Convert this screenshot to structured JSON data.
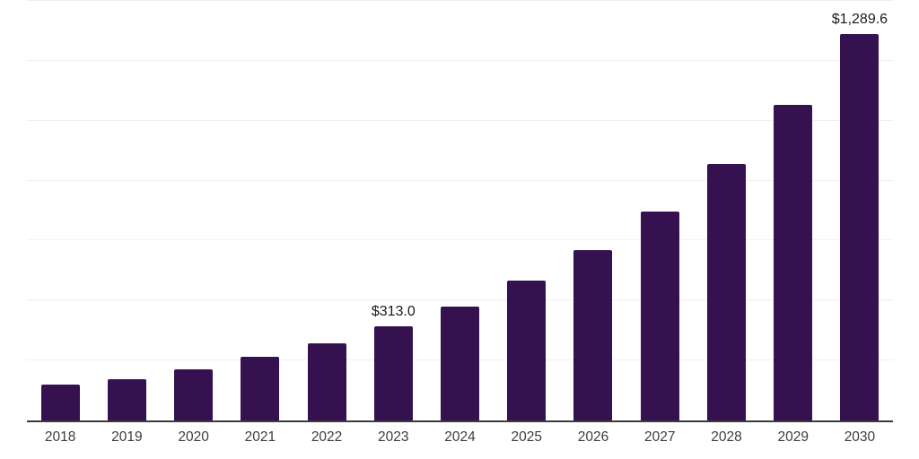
{
  "chart_data": {
    "type": "bar",
    "title": "",
    "xlabel": "",
    "ylabel": "",
    "categories": [
      "2018",
      "2019",
      "2020",
      "2021",
      "2022",
      "2023",
      "2024",
      "2025",
      "2026",
      "2027",
      "2028",
      "2029",
      "2030"
    ],
    "values": [
      120,
      139,
      172,
      214,
      256,
      313.0,
      380,
      467,
      569,
      698,
      856,
      1053,
      1289.6
    ],
    "data_labels": [
      "",
      "",
      "",
      "",
      "",
      "$313.0",
      "",
      "",
      "",
      "",
      "",
      "",
      "$1,289.6"
    ],
    "ylim": [
      0,
      1400
    ],
    "gridline_step": 200,
    "grid": true,
    "legend": false,
    "bar_color": "#351150",
    "gridline_color": "#f0f0f1",
    "axis_line_color": "#3a3a3a",
    "data_label_color": "#1a1a1a",
    "tick_label_color": "#3d3d3d"
  }
}
